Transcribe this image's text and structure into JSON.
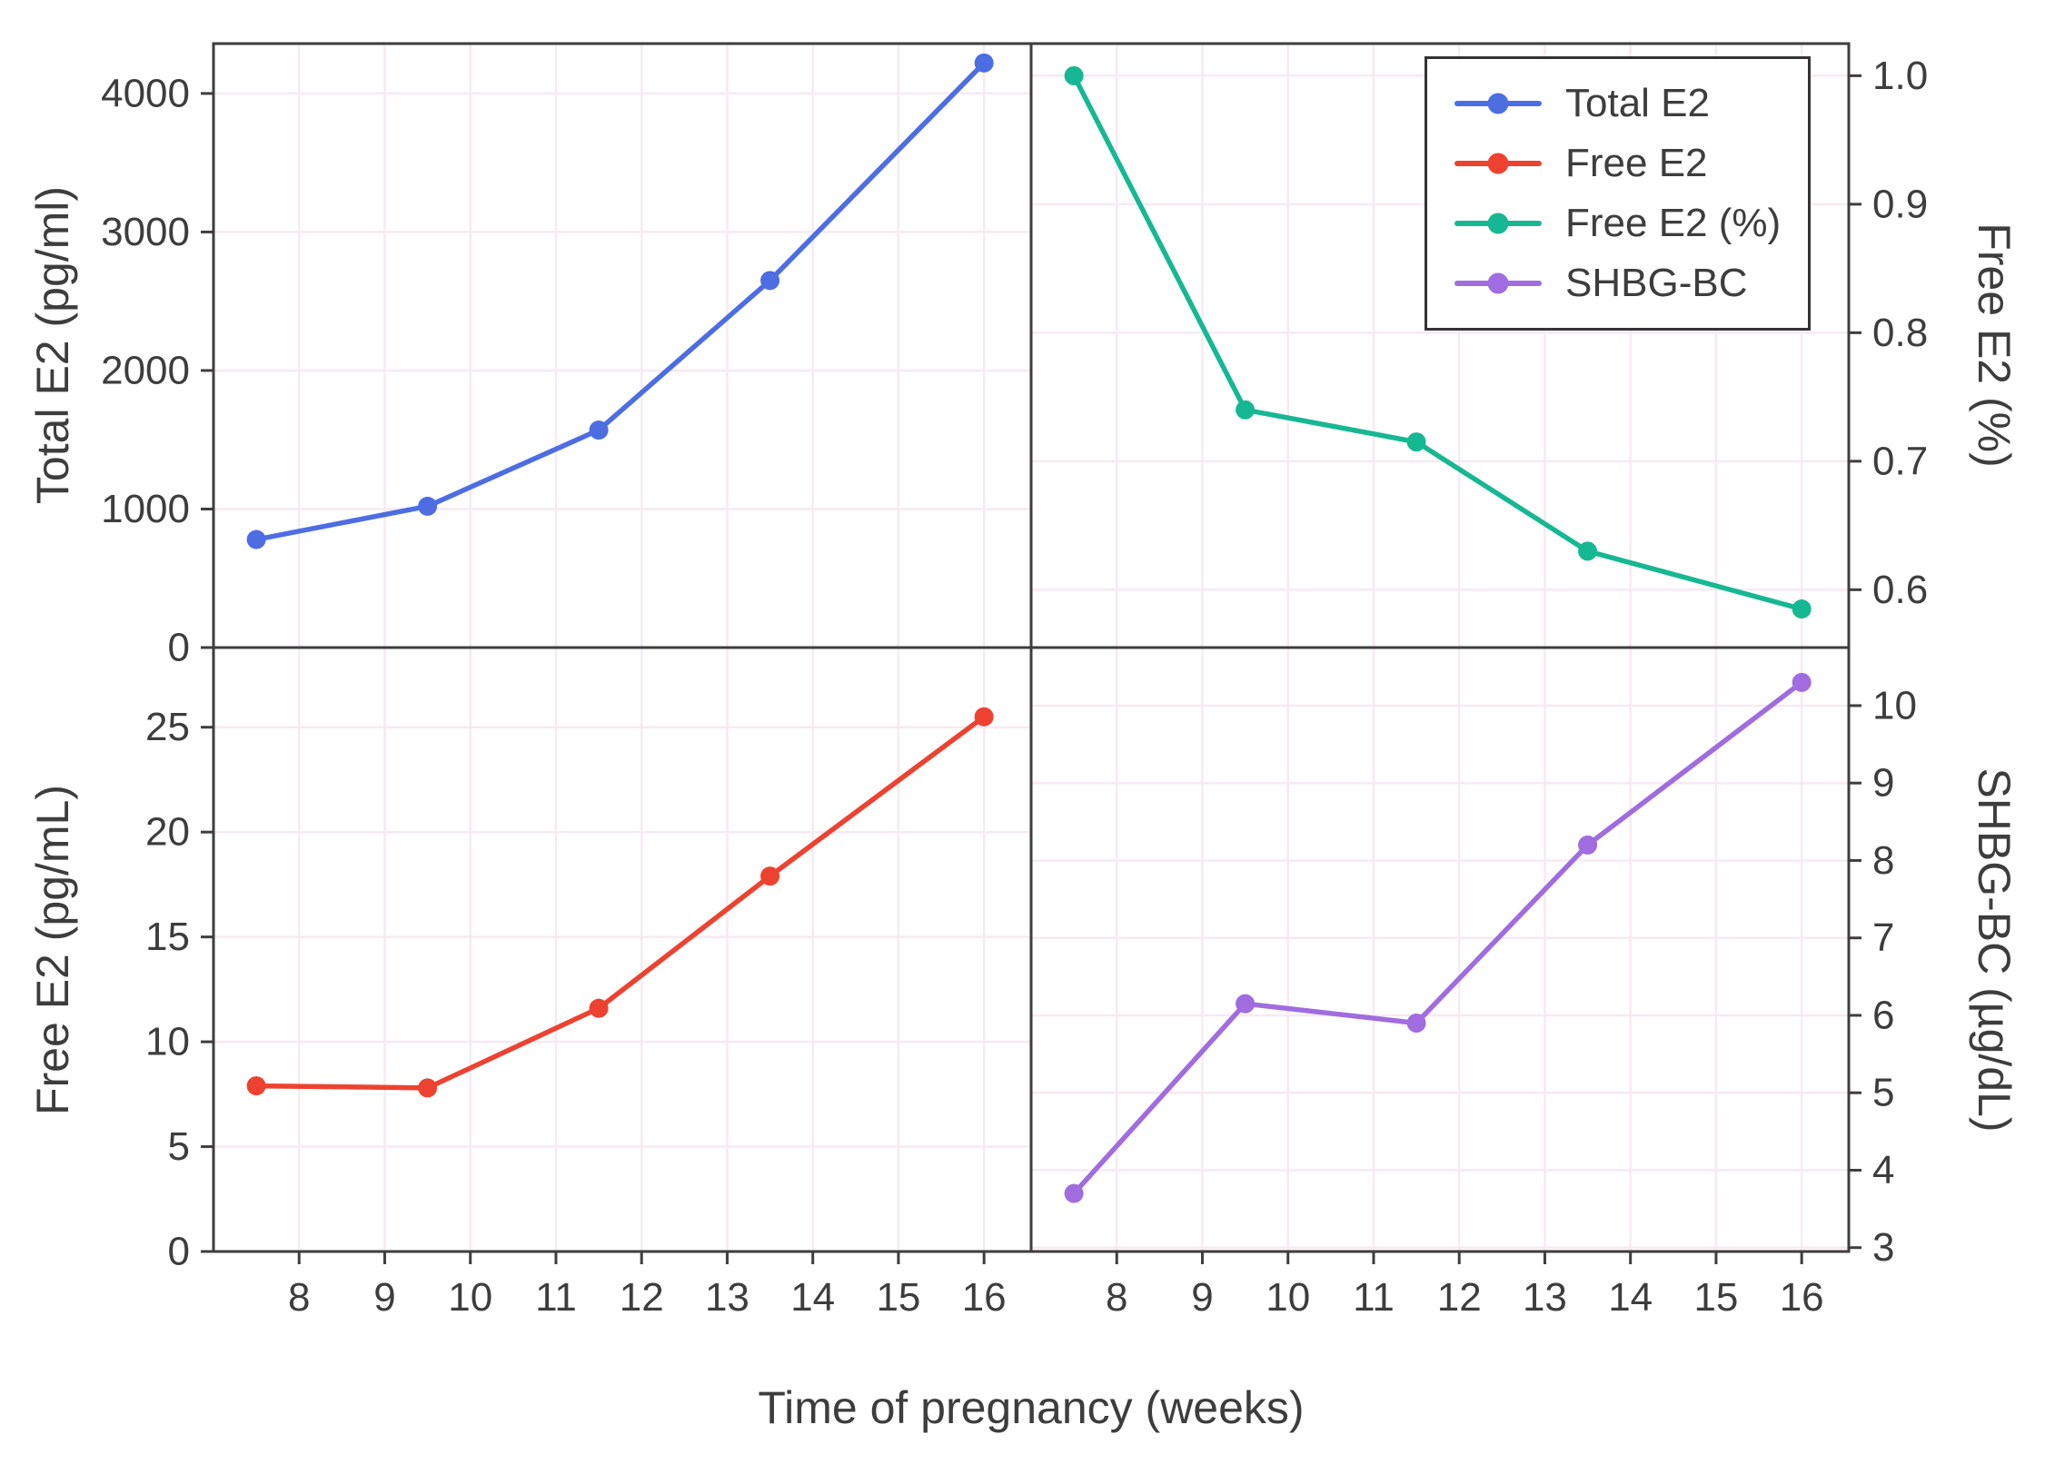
{
  "chart_data": {
    "type": "line",
    "title": "",
    "xlabel": "Time of pregnancy (weeks)",
    "x": [
      7.5,
      9.5,
      11.5,
      13.5,
      16
    ],
    "xlim": [
      7.0,
      16.55
    ],
    "x_ticks": [
      8,
      9,
      10,
      11,
      12,
      13,
      14,
      15,
      16
    ],
    "grid": true,
    "layout": "2x2 shared x-axis",
    "panels": [
      {
        "id": "total-e2",
        "series_name": "Total E2",
        "ylabel": "Total E2 (pg/ml)",
        "ylabel_side": "left",
        "color": "#4d6de3",
        "values": [
          780,
          1020,
          1570,
          2650,
          4220
        ],
        "ylim": [
          0,
          4360
        ],
        "yticks": [
          0,
          1000,
          2000,
          3000,
          4000
        ],
        "ytick_labels": [
          "0",
          "1000",
          "2000",
          "3000",
          "4000"
        ]
      },
      {
        "id": "free-e2-pct",
        "series_name": "Free E2 (%)",
        "ylabel": "Free E2 (%)",
        "ylabel_side": "right",
        "color": "#16b893",
        "values": [
          1.0,
          0.74,
          0.715,
          0.63,
          0.585
        ],
        "ylim": [
          0.555,
          1.025
        ],
        "yticks": [
          0.6,
          0.7,
          0.8,
          0.9,
          1.0
        ],
        "ytick_labels": [
          "0.6",
          "0.7",
          "0.8",
          "0.9",
          "1.0"
        ]
      },
      {
        "id": "free-e2",
        "series_name": "Free E2",
        "ylabel": "Free E2 (pg/mL)",
        "ylabel_side": "left",
        "color": "#ee4230",
        "values": [
          7.9,
          7.8,
          11.6,
          17.9,
          25.5
        ],
        "ylim": [
          0,
          28.8
        ],
        "yticks": [
          0,
          5,
          10,
          15,
          20,
          25
        ],
        "ytick_labels": [
          "0",
          "5",
          "10",
          "15",
          "20",
          "25"
        ]
      },
      {
        "id": "shbg-bc",
        "series_name": "SHBG-BC",
        "ylabel": "SHBG-BC (µg/dL)",
        "ylabel_side": "right",
        "color": "#a06ce0",
        "values": [
          3.7,
          6.15,
          5.9,
          8.2,
          10.3
        ],
        "ylim": [
          2.95,
          10.75
        ],
        "yticks": [
          3,
          4,
          5,
          6,
          7,
          8,
          9,
          10
        ],
        "ytick_labels": [
          "3",
          "4",
          "5",
          "6",
          "7",
          "8",
          "9",
          "10"
        ]
      }
    ],
    "legend": {
      "position": "inside top-right panel",
      "entries": [
        {
          "label": "Total E2",
          "color": "#4d6de3"
        },
        {
          "label": "Free E2",
          "color": "#ee4230"
        },
        {
          "label": "Free E2 (%)",
          "color": "#16b893"
        },
        {
          "label": "SHBG-BC",
          "color": "#a06ce0"
        }
      ]
    },
    "style": {
      "background": "#ffffff",
      "grid_color": "#f7eaf2",
      "border_color": "#3e3e3e",
      "text_color": "#3d3d3d"
    }
  }
}
